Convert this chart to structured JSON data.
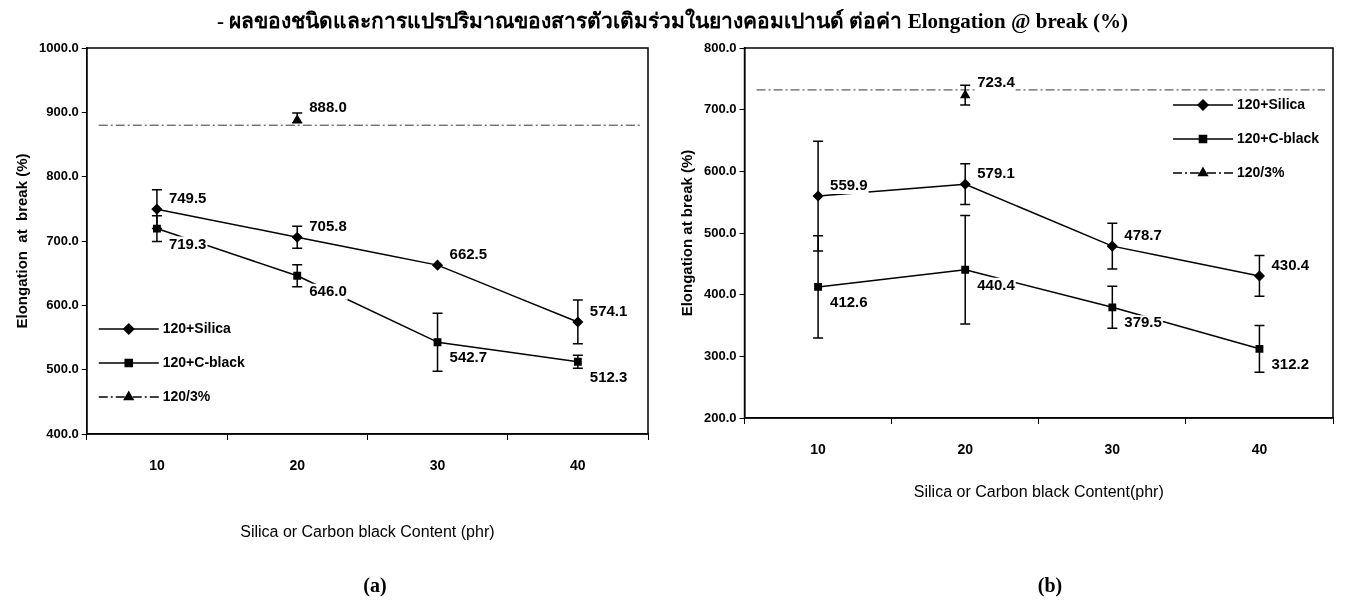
{
  "chart_data": [
    {
      "type": "line",
      "title": "- ผลของชนิดและการแปรปริมาณของสารตัวเติมร่วมในยางคอมเปานด์ ต่อค่า Elongation @ break (%)",
      "xlabel": "Silica or Carbon black Content (phr)",
      "ylabel": "Elongation  at  break (%)",
      "categories": [
        "10",
        "20",
        "30",
        "40"
      ],
      "series": [
        {
          "name": "120+Silica",
          "color": "#000000",
          "marker": "diamond",
          "values": [
            749.5,
            705.8,
            662.5,
            574.1
          ],
          "value_labels": [
            "749.5",
            "705.8",
            "662.5",
            "574.1"
          ],
          "errors": [
            30,
            17,
            null,
            34
          ]
        },
        {
          "name": "120+C-black",
          "color": "#000000",
          "marker": "square",
          "values": [
            719.3,
            646.0,
            542.7,
            512.3
          ],
          "value_labels": [
            "719.3",
            "646.0",
            "542.7",
            "512.3"
          ],
          "errors": [
            20,
            17,
            45,
            10
          ]
        },
        {
          "name": "120/3%",
          "color": "#000000",
          "marker": "triangle",
          "line_style": "dashed",
          "values": [
            null,
            888.0,
            null,
            null
          ],
          "value_labels": [
            null,
            "888.0",
            null,
            null
          ],
          "errors": [
            null,
            [
              884,
              899
            ],
            null,
            null
          ]
        }
      ],
      "ref_lines": [
        {
          "axis": "y",
          "value": 880,
          "line_style": "dashed",
          "color": "#000000"
        }
      ],
      "ylim": [
        400,
        1000
      ],
      "yticks": [
        {
          "value": 400,
          "label": "400.0"
        },
        {
          "value": 500,
          "label": "500.0"
        },
        {
          "value": 600,
          "label": "600.0"
        },
        {
          "value": 700,
          "label": "700.0"
        },
        {
          "value": 800,
          "label": "800.0"
        },
        {
          "value": 900,
          "label": "900.0"
        },
        {
          "value": 1000,
          "label": "1000.0"
        }
      ],
      "grid": false,
      "legend": "bottom left",
      "annotations": [
        "(a)"
      ]
    },
    {
      "type": "line",
      "xlabel": "Silica or Carbon black Content(phr)",
      "ylabel": "Elongation at break (%)",
      "categories": [
        "10",
        "20",
        "30",
        "40"
      ],
      "series": [
        {
          "name": "120+Silica",
          "color": "#000000",
          "marker": "diamond",
          "values": [
            559.9,
            579.1,
            478.7,
            430.4
          ],
          "value_labels": [
            "559.9",
            "579.1",
            "478.7",
            "430.4"
          ],
          "errors": [
            89,
            33,
            37,
            33
          ]
        },
        {
          "name": "120+C-black",
          "color": "#000000",
          "marker": "square",
          "values": [
            412.6,
            440.4,
            379.5,
            312.2
          ],
          "value_labels": [
            "412.6",
            "440.4",
            "379.5",
            "312.2"
          ],
          "errors": [
            83,
            88,
            34,
            38
          ]
        },
        {
          "name": "120/3%",
          "color": "#000000",
          "marker": "triangle",
          "line_style": "dashed",
          "values": [
            null,
            723.4,
            null,
            null
          ],
          "value_labels": [
            null,
            "723.4",
            null,
            null
          ],
          "errors": [
            null,
            16,
            null,
            null
          ]
        }
      ],
      "ref_lines": [
        {
          "axis": "y",
          "value": 732,
          "line_style": "dashed",
          "color": "#000000"
        }
      ],
      "ylim": [
        200,
        800
      ],
      "yticks": [
        {
          "value": 200,
          "label": "200.0"
        },
        {
          "value": 300,
          "label": "300.0"
        },
        {
          "value": 400,
          "label": "400.0"
        },
        {
          "value": 500,
          "label": "500.0"
        },
        {
          "value": 600,
          "label": "600.0"
        },
        {
          "value": 700,
          "label": "700.0"
        },
        {
          "value": 800,
          "label": "800.0"
        }
      ],
      "grid": false,
      "legend": "top right",
      "annotations": [
        "(b)"
      ]
    }
  ]
}
